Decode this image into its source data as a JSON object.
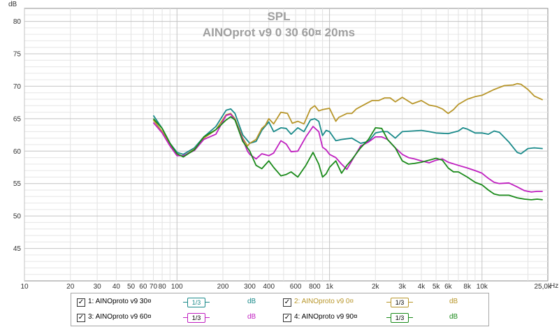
{
  "chart_data": {
    "type": "line",
    "title": "SPL",
    "subtitle": "AINOprot v9 0 30 60¤ 20ms",
    "ylabel": "dB",
    "xunit": "Hz",
    "xscale": "log",
    "xlim": [
      10,
      27000
    ],
    "ylim": [
      40,
      82
    ],
    "grid": true,
    "y_ticks": [
      45,
      50,
      55,
      60,
      65,
      70,
      75,
      80
    ],
    "x_ticks": [
      {
        "value": 10,
        "label": "10"
      },
      {
        "value": 20,
        "label": "20"
      },
      {
        "value": 30,
        "label": "30"
      },
      {
        "value": 40,
        "label": "40"
      },
      {
        "value": 50,
        "label": "50"
      },
      {
        "value": 60,
        "label": "60"
      },
      {
        "value": 70,
        "label": "70"
      },
      {
        "value": 80,
        "label": "80"
      },
      {
        "value": 100,
        "label": "100"
      },
      {
        "value": 200,
        "label": "200"
      },
      {
        "value": 300,
        "label": "300"
      },
      {
        "value": 400,
        "label": "400"
      },
      {
        "value": 600,
        "label": "600"
      },
      {
        "value": 800,
        "label": "800"
      },
      {
        "value": 1000,
        "label": "1k"
      },
      {
        "value": 2000,
        "label": "2k"
      },
      {
        "value": 3000,
        "label": "3k"
      },
      {
        "value": 4000,
        "label": "4k"
      },
      {
        "value": 5000,
        "label": "5k"
      },
      {
        "value": 6000,
        "label": "6k"
      },
      {
        "value": 8000,
        "label": "8k"
      },
      {
        "value": 10000,
        "label": "10k"
      },
      {
        "value": 25000,
        "label": "25,0k"
      }
    ],
    "series": [
      {
        "name": "1: AINOproto v9 30¤",
        "color": "#1a8a8a",
        "points": [
          [
            70,
            65.5
          ],
          [
            80,
            63.5
          ],
          [
            90,
            61.2
          ],
          [
            100,
            59.8
          ],
          [
            110,
            59.5
          ],
          [
            130,
            60.5
          ],
          [
            150,
            62.2
          ],
          [
            180,
            63.8
          ],
          [
            210,
            66.3
          ],
          [
            225,
            66.5
          ],
          [
            240,
            65.8
          ],
          [
            270,
            62.5
          ],
          [
            300,
            61.2
          ],
          [
            330,
            61.5
          ],
          [
            360,
            63.2
          ],
          [
            400,
            64.5
          ],
          [
            430,
            63.0
          ],
          [
            480,
            63.6
          ],
          [
            520,
            63.5
          ],
          [
            560,
            62.6
          ],
          [
            620,
            63.6
          ],
          [
            680,
            63.0
          ],
          [
            750,
            64.8
          ],
          [
            800,
            65.0
          ],
          [
            850,
            64.6
          ],
          [
            900,
            62.4
          ],
          [
            950,
            63.2
          ],
          [
            1000,
            63.0
          ],
          [
            1100,
            61.6
          ],
          [
            1200,
            61.8
          ],
          [
            1400,
            62.0
          ],
          [
            1600,
            61.2
          ],
          [
            1800,
            61.5
          ],
          [
            2000,
            62.8
          ],
          [
            2200,
            63.0
          ],
          [
            2400,
            63.0
          ],
          [
            2700,
            62.0
          ],
          [
            3000,
            63.0
          ],
          [
            3500,
            63.1
          ],
          [
            4000,
            63.2
          ],
          [
            4500,
            63.0
          ],
          [
            5000,
            62.8
          ],
          [
            6000,
            62.7
          ],
          [
            7000,
            63.1
          ],
          [
            7500,
            63.6
          ],
          [
            8000,
            63.4
          ],
          [
            9000,
            62.8
          ],
          [
            10000,
            62.8
          ],
          [
            11000,
            62.6
          ],
          [
            12000,
            63.1
          ],
          [
            13000,
            62.9
          ],
          [
            15000,
            61.4
          ],
          [
            17000,
            59.8
          ],
          [
            18000,
            59.6
          ],
          [
            20000,
            60.4
          ],
          [
            22000,
            60.5
          ],
          [
            25000,
            60.4
          ]
        ]
      },
      {
        "name": "2: AINOproto v9 0¤",
        "color": "#b8962a",
        "points": [
          [
            70,
            64.8
          ],
          [
            80,
            63.0
          ],
          [
            90,
            61.0
          ],
          [
            100,
            59.5
          ],
          [
            110,
            59.2
          ],
          [
            130,
            60.3
          ],
          [
            150,
            62.0
          ],
          [
            180,
            63.3
          ],
          [
            210,
            65.6
          ],
          [
            225,
            65.8
          ],
          [
            240,
            65.0
          ],
          [
            270,
            62.0
          ],
          [
            290,
            60.8
          ],
          [
            300,
            61.2
          ],
          [
            330,
            61.8
          ],
          [
            360,
            63.5
          ],
          [
            380,
            64.0
          ],
          [
            400,
            65.0
          ],
          [
            430,
            64.2
          ],
          [
            480,
            66.0
          ],
          [
            530,
            65.8
          ],
          [
            570,
            64.3
          ],
          [
            620,
            64.6
          ],
          [
            680,
            64.2
          ],
          [
            750,
            66.5
          ],
          [
            800,
            67.0
          ],
          [
            850,
            66.2
          ],
          [
            900,
            66.4
          ],
          [
            950,
            66.5
          ],
          [
            1000,
            66.6
          ],
          [
            1100,
            64.6
          ],
          [
            1150,
            65.2
          ],
          [
            1300,
            65.8
          ],
          [
            1400,
            65.8
          ],
          [
            1500,
            66.5
          ],
          [
            1700,
            67.2
          ],
          [
            1900,
            67.8
          ],
          [
            2100,
            67.8
          ],
          [
            2300,
            68.2
          ],
          [
            2500,
            68.2
          ],
          [
            2700,
            67.6
          ],
          [
            3000,
            68.3
          ],
          [
            3500,
            67.3
          ],
          [
            4000,
            67.8
          ],
          [
            4500,
            67.1
          ],
          [
            5000,
            66.9
          ],
          [
            5500,
            66.5
          ],
          [
            6000,
            65.8
          ],
          [
            6500,
            66.4
          ],
          [
            7000,
            67.2
          ],
          [
            8000,
            68.0
          ],
          [
            9000,
            68.4
          ],
          [
            10000,
            68.6
          ],
          [
            12000,
            69.5
          ],
          [
            14000,
            70.1
          ],
          [
            16000,
            70.2
          ],
          [
            17000,
            70.4
          ],
          [
            18000,
            70.3
          ],
          [
            20000,
            69.5
          ],
          [
            22000,
            68.5
          ],
          [
            25000,
            67.9
          ]
        ]
      },
      {
        "name": "3: AINOproto v9 60¤",
        "color": "#c020c0",
        "points": [
          [
            70,
            64.4
          ],
          [
            80,
            62.8
          ],
          [
            90,
            60.8
          ],
          [
            100,
            59.3
          ],
          [
            110,
            59.3
          ],
          [
            130,
            60.1
          ],
          [
            150,
            61.8
          ],
          [
            180,
            62.6
          ],
          [
            210,
            65.5
          ],
          [
            225,
            65.7
          ],
          [
            240,
            64.8
          ],
          [
            270,
            61.8
          ],
          [
            290,
            60.0
          ],
          [
            300,
            59.5
          ],
          [
            330,
            58.8
          ],
          [
            360,
            59.6
          ],
          [
            400,
            59.3
          ],
          [
            430,
            59.7
          ],
          [
            480,
            61.6
          ],
          [
            520,
            61.1
          ],
          [
            560,
            59.9
          ],
          [
            620,
            60.0
          ],
          [
            700,
            62.2
          ],
          [
            780,
            63.8
          ],
          [
            850,
            63.0
          ],
          [
            900,
            60.6
          ],
          [
            950,
            60.2
          ],
          [
            1000,
            59.5
          ],
          [
            1100,
            59.0
          ],
          [
            1200,
            58.0
          ],
          [
            1300,
            57.2
          ],
          [
            1400,
            58.5
          ],
          [
            1600,
            60.8
          ],
          [
            1800,
            61.4
          ],
          [
            2000,
            62.2
          ],
          [
            2200,
            62.2
          ],
          [
            2400,
            61.8
          ],
          [
            2700,
            60.5
          ],
          [
            3000,
            59.5
          ],
          [
            3300,
            59.0
          ],
          [
            3600,
            58.8
          ],
          [
            4000,
            58.5
          ],
          [
            4500,
            58.2
          ],
          [
            5000,
            58.6
          ],
          [
            5500,
            58.8
          ],
          [
            6000,
            58.3
          ],
          [
            7000,
            57.8
          ],
          [
            8000,
            57.4
          ],
          [
            9000,
            57.0
          ],
          [
            10000,
            56.6
          ],
          [
            11000,
            55.8
          ],
          [
            12000,
            55.2
          ],
          [
            13000,
            55.0
          ],
          [
            15000,
            55.1
          ],
          [
            17000,
            54.5
          ],
          [
            19000,
            53.9
          ],
          [
            21000,
            53.7
          ],
          [
            23000,
            53.8
          ],
          [
            25000,
            53.8
          ]
        ]
      },
      {
        "name": "4: AINOproto v9 90¤",
        "color": "#1a8a1a",
        "points": [
          [
            70,
            65.0
          ],
          [
            80,
            63.5
          ],
          [
            90,
            61.2
          ],
          [
            100,
            59.6
          ],
          [
            110,
            59.1
          ],
          [
            130,
            60.2
          ],
          [
            150,
            62.2
          ],
          [
            180,
            63.3
          ],
          [
            210,
            64.8
          ],
          [
            225,
            65.3
          ],
          [
            240,
            64.8
          ],
          [
            270,
            61.5
          ],
          [
            290,
            60.5
          ],
          [
            300,
            60.0
          ],
          [
            330,
            57.8
          ],
          [
            360,
            57.3
          ],
          [
            400,
            58.5
          ],
          [
            430,
            57.5
          ],
          [
            480,
            56.2
          ],
          [
            520,
            56.4
          ],
          [
            560,
            56.8
          ],
          [
            620,
            56.0
          ],
          [
            700,
            57.8
          ],
          [
            780,
            59.8
          ],
          [
            850,
            58.0
          ],
          [
            900,
            56.0
          ],
          [
            950,
            56.5
          ],
          [
            1000,
            57.5
          ],
          [
            1100,
            58.5
          ],
          [
            1200,
            56.6
          ],
          [
            1300,
            57.8
          ],
          [
            1400,
            58.7
          ],
          [
            1600,
            60.5
          ],
          [
            1800,
            61.8
          ],
          [
            2000,
            63.6
          ],
          [
            2200,
            63.5
          ],
          [
            2400,
            61.8
          ],
          [
            2700,
            60.5
          ],
          [
            3000,
            58.5
          ],
          [
            3300,
            58.0
          ],
          [
            3600,
            58.1
          ],
          [
            4000,
            58.3
          ],
          [
            4500,
            58.6
          ],
          [
            5000,
            58.9
          ],
          [
            5500,
            58.6
          ],
          [
            6000,
            57.4
          ],
          [
            6500,
            56.8
          ],
          [
            7000,
            56.8
          ],
          [
            8000,
            56.0
          ],
          [
            9000,
            55.2
          ],
          [
            10000,
            54.8
          ],
          [
            11000,
            54.0
          ],
          [
            12000,
            53.4
          ],
          [
            13000,
            53.2
          ],
          [
            15000,
            53.2
          ],
          [
            17000,
            52.8
          ],
          [
            19000,
            52.6
          ],
          [
            21000,
            52.5
          ],
          [
            23000,
            52.6
          ],
          [
            25000,
            52.5
          ]
        ]
      }
    ]
  },
  "legend": {
    "items": [
      {
        "check": "✓",
        "label": "1: AINOproto v9 30¤",
        "smoothing": "1/3",
        "unit": "dB",
        "color": "#1a8a8a"
      },
      {
        "check": "✓",
        "label": "2: AINOproto v9 0¤",
        "smoothing": "1/3",
        "unit": "dB",
        "color": "#b8962a"
      },
      {
        "check": "✓",
        "label": "3: AINOproto v9 60¤",
        "smoothing": "1/3",
        "unit": "dB",
        "color": "#c020c0"
      },
      {
        "check": "✓",
        "label": "4: AINOproto v9 90¤",
        "smoothing": "1/3",
        "unit": "dB",
        "color": "#1a8a1a"
      }
    ]
  }
}
